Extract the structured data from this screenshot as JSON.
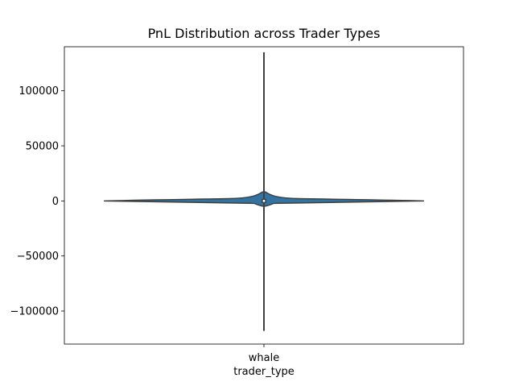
{
  "chart_data": {
    "type": "violin",
    "title": "PnL Distribution across Trader Types",
    "xlabel": "trader_type",
    "ylabel": "",
    "categories": [
      "whale"
    ],
    "ylim": [
      -130000,
      140000
    ],
    "yticks": [
      -100000,
      -50000,
      0,
      50000,
      100000
    ],
    "ytick_labels": [
      "−100000",
      "−50000",
      "0",
      "50000",
      "100000"
    ],
    "violins": [
      {
        "category": "whale",
        "min": -118000,
        "max": 135000,
        "median": 0,
        "q1": -400,
        "q3": 400,
        "color": "#3274a1",
        "edge_color": "#3f3f3f"
      }
    ],
    "grid": false
  }
}
